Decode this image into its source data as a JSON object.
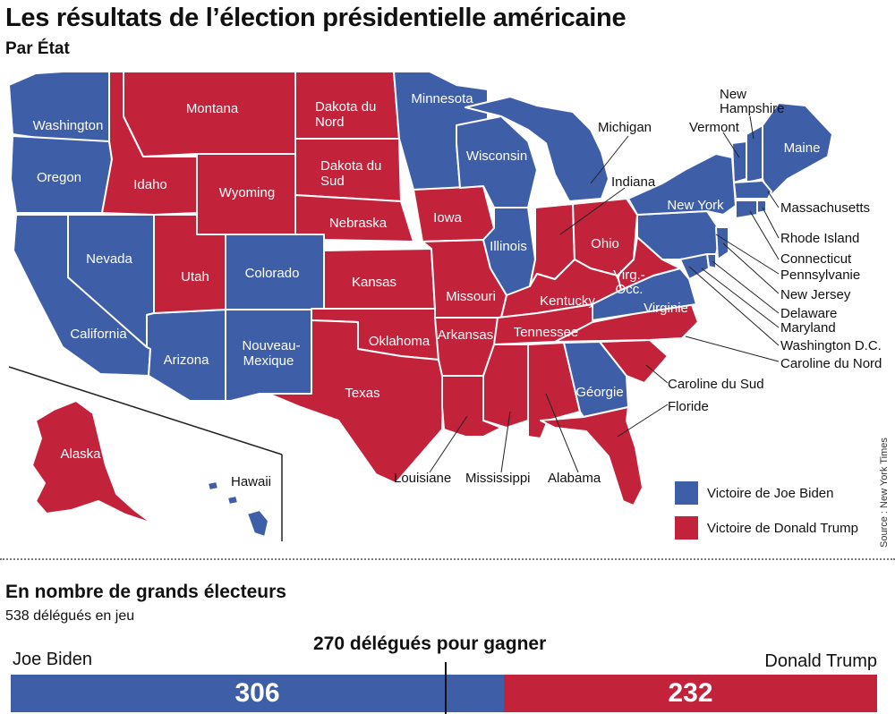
{
  "title": "Les résultats de l’élection présidentielle américaine",
  "subtitle": "Par État",
  "source": "Source : New York Times",
  "colors": {
    "biden": "#3e5ea8",
    "trump": "#c2223a"
  },
  "legend": [
    {
      "label": "Victoire de Joe Biden",
      "party": "biden"
    },
    {
      "label": "Victoire de Donald Trump",
      "party": "trump"
    }
  ],
  "states": {
    "washington": "Washington",
    "oregon": "Oregon",
    "california": "California",
    "nevada": "Nevada",
    "idaho": "Idaho",
    "montana": "Montana",
    "wyoming": "Wyoming",
    "utah": "Utah",
    "colorado": "Colorado",
    "arizona": "Arizona",
    "new_mexico": "Nouveau-Mexique",
    "north_dakota": "Dakota du Nord",
    "south_dakota": "Dakota du Sud",
    "nebraska": "Nebraska",
    "kansas": "Kansas",
    "oklahoma": "Oklahoma",
    "texas": "Texas",
    "minnesota": "Minnesota",
    "iowa": "Iowa",
    "missouri": "Missouri",
    "arkansas": "Arkansas",
    "louisiana": "Louisiane",
    "wisconsin": "Wisconsin",
    "illinois": "Illinois",
    "michigan": "Michigan",
    "indiana": "Indiana",
    "ohio": "Ohio",
    "kentucky": "Kentucky",
    "tennessee": "Tennessee",
    "mississippi": "Mississippi",
    "alabama": "Alabama",
    "georgia": "Géorgie",
    "florida": "Floride",
    "south_carolina": "Caroline du Sud",
    "north_carolina": "Caroline du Nord",
    "virginia": "Virginie",
    "west_virginia": "Virg.-Occ.",
    "pennsylvania": "Pennsylvanie",
    "new_york": "New York",
    "vermont": "Vermont",
    "new_hampshire": "New Hampshire",
    "maine": "Maine",
    "massachusetts": "Massachusetts",
    "rhode_island": "Rhode Island",
    "connecticut": "Connecticut",
    "new_jersey": "New Jersey",
    "delaware": "Delaware",
    "maryland": "Maryland",
    "dc": "Washington D.C.",
    "alaska": "Alaska",
    "hawaii": "Hawaii"
  },
  "electoral": {
    "heading": "En nombre de grands électeurs",
    "subheading": "538 délégués en jeu",
    "threshold_label": "270 délégués pour gagner",
    "total": 538,
    "threshold": 270,
    "biden": {
      "name": "Joe Biden",
      "votes": 306
    },
    "trump": {
      "name": "Donald Trump",
      "votes": 232
    }
  }
}
